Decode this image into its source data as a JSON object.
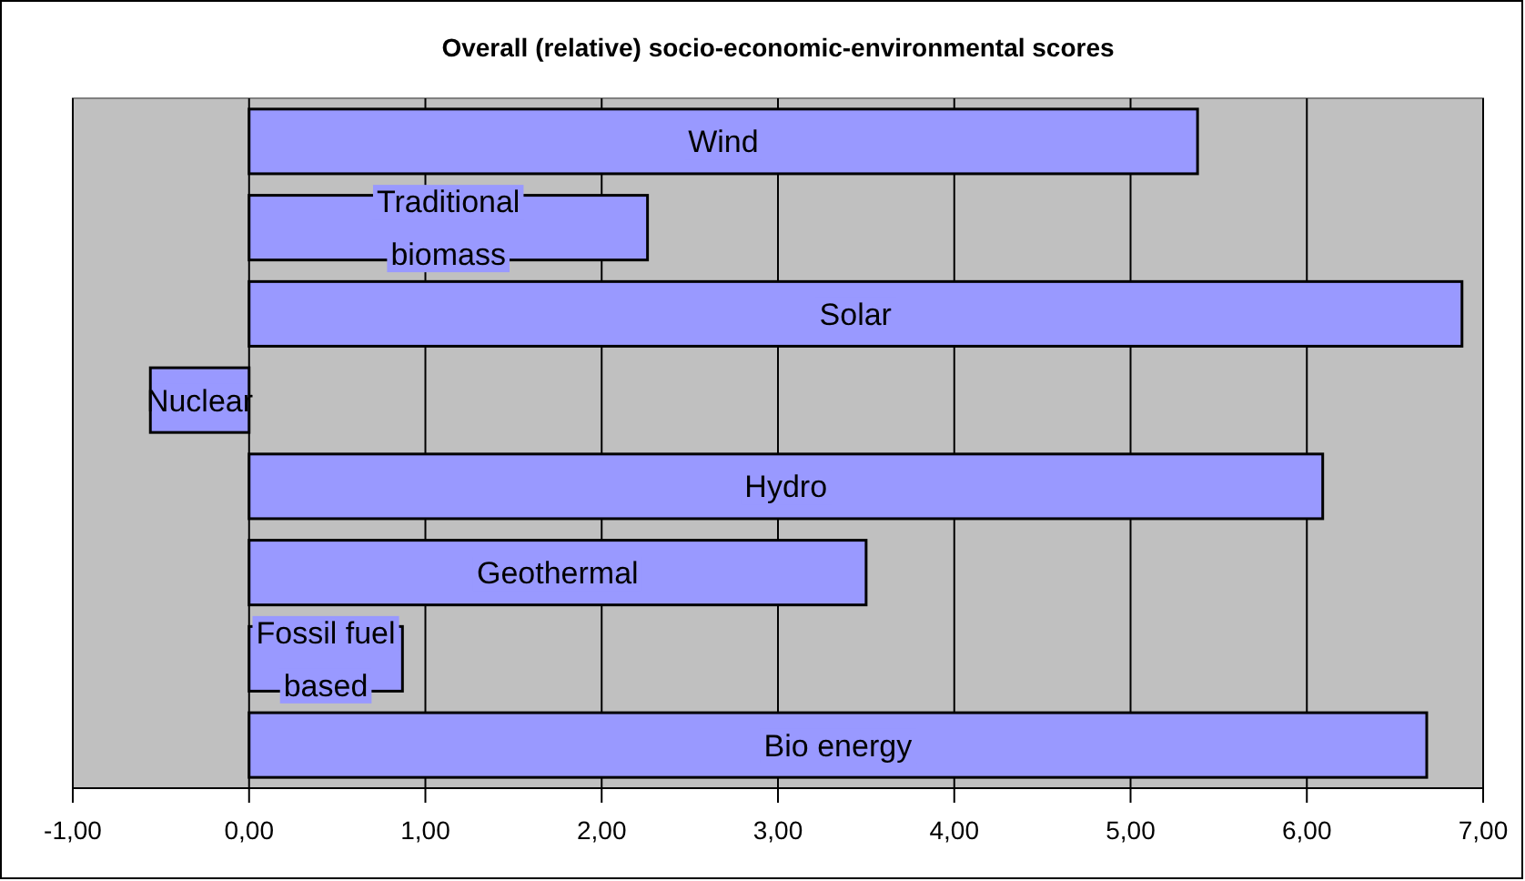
{
  "chart_data": {
    "type": "bar",
    "orientation": "horizontal",
    "title": "Overall (relative) socio-economic-environmental scores",
    "categories": [
      "Wind",
      "Traditional biomass",
      "Solar",
      "Nuclear",
      "Hydro",
      "Geothermal",
      "Fossil fuel based",
      "Bio energy"
    ],
    "values": [
      5.38,
      2.26,
      6.88,
      -0.56,
      6.09,
      3.5,
      0.87,
      6.68
    ],
    "color": "#9999ff",
    "xlim": [
      -1,
      7
    ],
    "xticks": [
      {
        "value": -1,
        "label": "-1,00"
      },
      {
        "value": 0,
        "label": "0,00"
      },
      {
        "value": 1,
        "label": "1,00"
      },
      {
        "value": 2,
        "label": "2,00"
      },
      {
        "value": 3,
        "label": "3,00"
      },
      {
        "value": 4,
        "label": "4,00"
      },
      {
        "value": 5,
        "label": "5,00"
      },
      {
        "value": 6,
        "label": "6,00"
      },
      {
        "value": 7,
        "label": "7,00"
      }
    ],
    "grid": "x",
    "tick_labels": "x"
  }
}
